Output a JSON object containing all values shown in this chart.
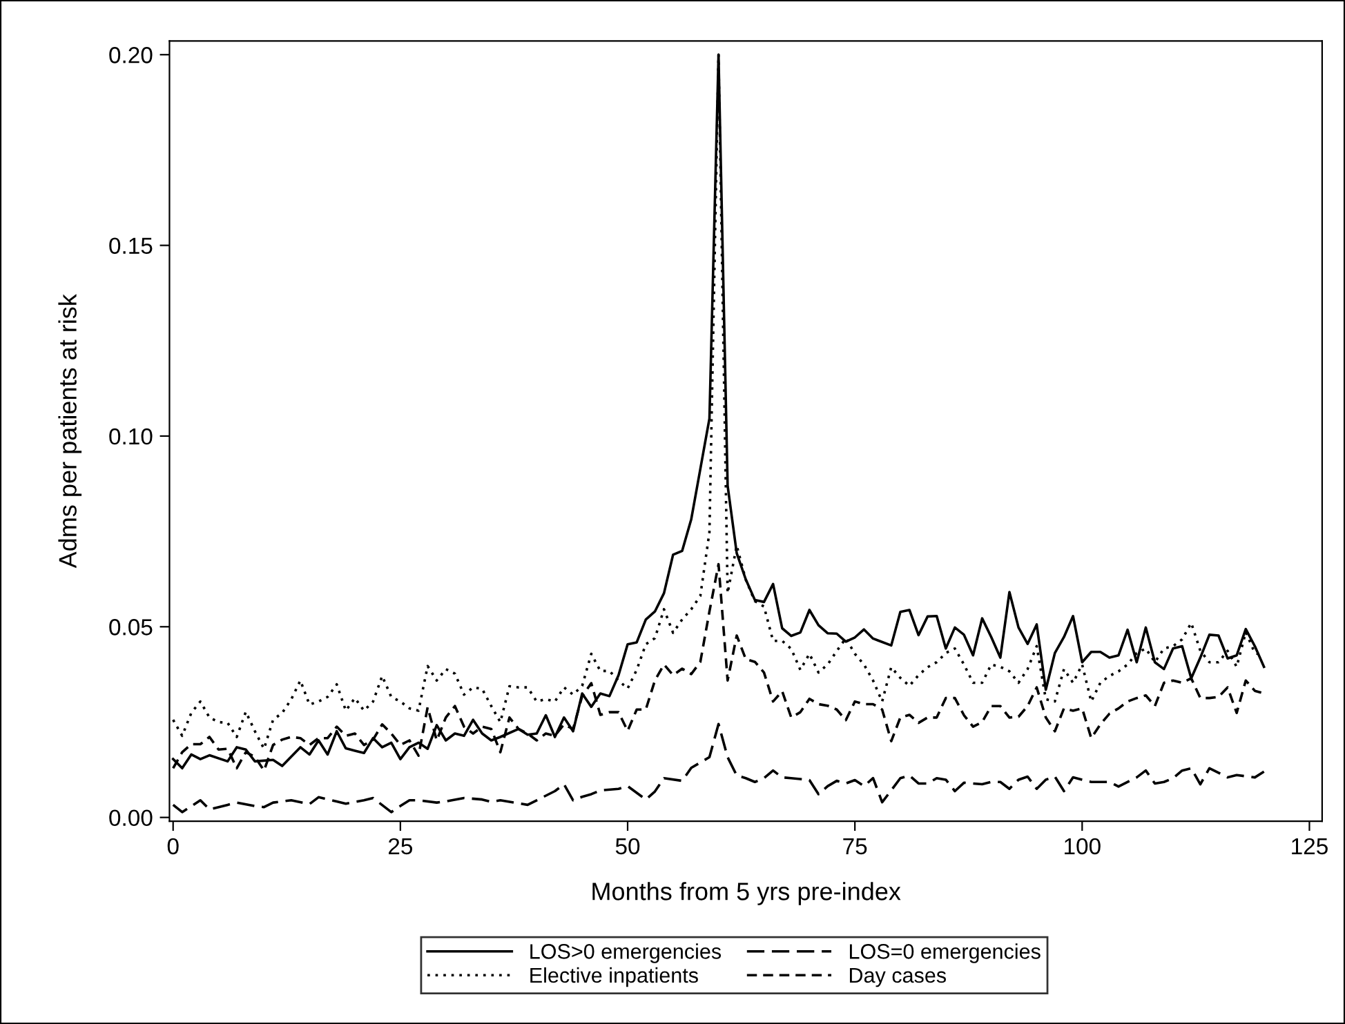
{
  "chart_data": {
    "type": "line",
    "xlabel": "Months from 5 yrs pre-index",
    "ylabel": "Adms per patients at risk",
    "xlim": [
      -0.4,
      126.4
    ],
    "ylim": [
      -0.001,
      0.2036
    ],
    "xticks": [
      0,
      25,
      50,
      75,
      100,
      125
    ],
    "yticks": [
      {
        "value": 0,
        "label": "0.00"
      },
      {
        "value": 0.05,
        "label": "0.05"
      },
      {
        "value": 0.1,
        "label": "0.10"
      },
      {
        "value": 0.15,
        "label": "0.15"
      },
      {
        "value": 0.2,
        "label": "0.20"
      }
    ],
    "grid": false,
    "legend": "bottom",
    "marker": "none",
    "series": [
      {
        "name": "LOS>0 emergencies",
        "color": "#000000",
        "line_style": "solid",
        "x": [
          0,
          1,
          2,
          3,
          4,
          6,
          7,
          8,
          9,
          11,
          12,
          14,
          15,
          16,
          17,
          18,
          19,
          20,
          21,
          22,
          23,
          24,
          25,
          26,
          27,
          28,
          29,
          30,
          31,
          32,
          33,
          34,
          35,
          36,
          38,
          39,
          40,
          41,
          42,
          43,
          44,
          45,
          46,
          47,
          48,
          49,
          50,
          51,
          52,
          53,
          54,
          55,
          56,
          57,
          58,
          59,
          60,
          61,
          62,
          63,
          64,
          65,
          66,
          67,
          68,
          69,
          70,
          71,
          72,
          73,
          74,
          75,
          76,
          77,
          79,
          80,
          81,
          82,
          83,
          84,
          85,
          86,
          87,
          88,
          89,
          90,
          91,
          92,
          93,
          94,
          95,
          96,
          97,
          98,
          99,
          100,
          101,
          102,
          103,
          104,
          105,
          106,
          107,
          108,
          109,
          110,
          111,
          112,
          113,
          114,
          115,
          116,
          117,
          118,
          119,
          120
        ],
        "values": [
          0.0153,
          0.0129,
          0.0165,
          0.0153,
          0.0163,
          0.0147,
          0.0184,
          0.0178,
          0.0147,
          0.0151,
          0.0135,
          0.0184,
          0.0165,
          0.0202,
          0.0165,
          0.0226,
          0.0181,
          0.0175,
          0.0169,
          0.0208,
          0.0184,
          0.0196,
          0.0153,
          0.0184,
          0.0196,
          0.018,
          0.0242,
          0.0202,
          0.022,
          0.0214,
          0.0256,
          0.022,
          0.0202,
          0.0211,
          0.0232,
          0.0217,
          0.022,
          0.0268,
          0.0211,
          0.0262,
          0.0226,
          0.0325,
          0.029,
          0.0325,
          0.0318,
          0.0373,
          0.0454,
          0.0459,
          0.0519,
          0.054,
          0.0588,
          0.0689,
          0.0699,
          0.0782,
          0.0914,
          0.1046,
          0.2,
          0.087,
          0.0693,
          0.0624,
          0.057,
          0.0565,
          0.0612,
          0.0496,
          0.0476,
          0.0485,
          0.0544,
          0.0504,
          0.0483,
          0.0482,
          0.0461,
          0.0472,
          0.0493,
          0.0469,
          0.0451,
          0.0539,
          0.0544,
          0.0478,
          0.0527,
          0.0528,
          0.0443,
          0.0498,
          0.0479,
          0.0425,
          0.0522,
          0.0473,
          0.0419,
          0.0591,
          0.0498,
          0.0455,
          0.0506,
          0.0335,
          0.0431,
          0.0473,
          0.0528,
          0.0407,
          0.0434,
          0.0434,
          0.0419,
          0.0425,
          0.0492,
          0.0407,
          0.0498,
          0.0407,
          0.0389,
          0.0443,
          0.0449,
          0.0365,
          0.0419,
          0.0479,
          0.0477,
          0.0417,
          0.0425,
          0.0494,
          0.0449,
          0.0395
        ]
      },
      {
        "name": "LOS=0 emergencies",
        "color": "#000000",
        "line_style": "dashed",
        "x": [
          0,
          1,
          3,
          4,
          6,
          7,
          9,
          10,
          11,
          13,
          15,
          16,
          18,
          19,
          21,
          22,
          24,
          25,
          26,
          27,
          29,
          30,
          32,
          34,
          35,
          36,
          39,
          40,
          42,
          43,
          44,
          45,
          46,
          47,
          49,
          50,
          52,
          53,
          54,
          56,
          57,
          58,
          59,
          60,
          61,
          62,
          63,
          64,
          65,
          66,
          67,
          68,
          70,
          71,
          72,
          73,
          74,
          75,
          76,
          77,
          78,
          79,
          80,
          81,
          82,
          83,
          84,
          85,
          86,
          87,
          89,
          90,
          91,
          92,
          93,
          94,
          95,
          96,
          97,
          98,
          99,
          100,
          101,
          103,
          104,
          106,
          107,
          108,
          109,
          110,
          111,
          112,
          113,
          114,
          116,
          117,
          119,
          120
        ],
        "values": [
          0.0033,
          0.0014,
          0.0045,
          0.0021,
          0.0033,
          0.0039,
          0.003,
          0.0027,
          0.0039,
          0.0045,
          0.0035,
          0.0053,
          0.0042,
          0.0036,
          0.0045,
          0.0051,
          0.0014,
          0.003,
          0.0045,
          0.0045,
          0.0039,
          0.0042,
          0.0051,
          0.0047,
          0.0041,
          0.0045,
          0.0033,
          0.0045,
          0.0069,
          0.0087,
          0.0045,
          0.0054,
          0.0061,
          0.0071,
          0.0075,
          0.0082,
          0.0047,
          0.0068,
          0.0103,
          0.0096,
          0.013,
          0.0144,
          0.0158,
          0.0245,
          0.0158,
          0.011,
          0.0103,
          0.0093,
          0.0103,
          0.0123,
          0.0105,
          0.0103,
          0.0098,
          0.0061,
          0.0082,
          0.0096,
          0.0089,
          0.0098,
          0.0082,
          0.0103,
          0.004,
          0.0071,
          0.0103,
          0.011,
          0.0089,
          0.0089,
          0.0103,
          0.0099,
          0.0069,
          0.0091,
          0.0087,
          0.0093,
          0.0093,
          0.0075,
          0.0099,
          0.0107,
          0.0075,
          0.0099,
          0.0107,
          0.0069,
          0.0105,
          0.0099,
          0.0093,
          0.0093,
          0.0081,
          0.0105,
          0.0123,
          0.0089,
          0.0093,
          0.0103,
          0.0123,
          0.0129,
          0.0087,
          0.0129,
          0.0105,
          0.0111,
          0.0105,
          0.012
        ]
      },
      {
        "name": "Elective inpatients",
        "color": "#000000",
        "line_style": "dotted",
        "x": [
          0,
          1,
          2,
          3,
          4,
          5,
          6,
          7,
          8,
          9,
          10,
          11,
          12,
          13,
          14,
          15,
          16,
          17,
          18,
          19,
          20,
          21,
          22,
          23,
          24,
          25,
          26,
          27,
          28,
          29,
          30,
          31,
          32,
          33,
          34,
          35,
          36,
          37,
          38,
          39,
          40,
          41,
          42,
          43,
          44,
          45,
          46,
          47,
          48,
          49,
          50,
          51,
          52,
          53,
          54,
          55,
          56,
          57,
          58,
          59,
          60,
          61,
          62,
          63,
          64,
          65,
          66,
          67,
          68,
          69,
          70,
          71,
          72,
          73,
          74,
          75,
          76,
          77,
          78,
          79,
          80,
          81,
          82,
          83,
          84,
          85,
          86,
          87,
          88,
          89,
          90,
          91,
          92,
          93,
          94,
          95,
          96,
          97,
          98,
          99,
          100,
          101,
          102,
          103,
          104,
          105,
          106,
          107,
          108,
          109,
          110,
          111,
          112,
          113,
          114,
          115,
          116,
          117,
          118,
          119,
          120
        ],
        "values": [
          0.0256,
          0.0214,
          0.0274,
          0.0304,
          0.0262,
          0.025,
          0.0248,
          0.0211,
          0.0277,
          0.0226,
          0.018,
          0.0256,
          0.0274,
          0.031,
          0.0359,
          0.0296,
          0.0304,
          0.0316,
          0.0349,
          0.028,
          0.0313,
          0.028,
          0.0304,
          0.0371,
          0.0316,
          0.0304,
          0.0286,
          0.028,
          0.0397,
          0.0359,
          0.0389,
          0.0377,
          0.0322,
          0.0341,
          0.0337,
          0.0292,
          0.025,
          0.0344,
          0.0341,
          0.0341,
          0.0304,
          0.031,
          0.0304,
          0.0341,
          0.0322,
          0.0345,
          0.0429,
          0.0384,
          0.0384,
          0.0359,
          0.0338,
          0.0387,
          0.0454,
          0.047,
          0.0546,
          0.0484,
          0.0519,
          0.0546,
          0.0581,
          0.0748,
          0.2,
          0.0588,
          0.0713,
          0.0623,
          0.0567,
          0.0553,
          0.0463,
          0.0463,
          0.0442,
          0.0387,
          0.0429,
          0.038,
          0.0401,
          0.0436,
          0.047,
          0.0429,
          0.0401,
          0.0359,
          0.0304,
          0.0394,
          0.0366,
          0.0345,
          0.0373,
          0.0394,
          0.0407,
          0.0431,
          0.0443,
          0.0401,
          0.0353,
          0.0353,
          0.0401,
          0.0395,
          0.0383,
          0.0353,
          0.0389,
          0.0449,
          0.031,
          0.0304,
          0.0389,
          0.0353,
          0.0401,
          0.0304,
          0.0353,
          0.0371,
          0.0383,
          0.0401,
          0.0431,
          0.0443,
          0.0407,
          0.0443,
          0.0449,
          0.0467,
          0.051,
          0.0437,
          0.0407,
          0.0407,
          0.0437,
          0.0395,
          0.0486,
          0.0431,
          0.0425
        ]
      },
      {
        "name": "Day cases",
        "color": "#000000",
        "line_style": "dashed",
        "x": [
          0,
          1,
          2,
          3,
          4,
          5,
          6,
          7,
          8,
          9,
          10,
          11,
          12,
          13,
          14,
          15,
          16,
          17,
          18,
          19,
          20,
          21,
          22,
          23,
          24,
          25,
          26,
          27,
          28,
          29,
          30,
          31,
          32,
          33,
          34,
          35,
          36,
          37,
          38,
          39,
          40,
          41,
          42,
          43,
          44,
          45,
          46,
          47,
          48,
          49,
          50,
          51,
          52,
          53,
          54,
          55,
          56,
          57,
          58,
          59,
          60,
          61,
          62,
          63,
          64,
          65,
          66,
          67,
          68,
          69,
          70,
          71,
          72,
          73,
          74,
          75,
          76,
          77,
          78,
          79,
          80,
          81,
          82,
          83,
          84,
          85,
          86,
          87,
          88,
          89,
          90,
          91,
          92,
          93,
          94,
          95,
          96,
          97,
          98,
          99,
          100,
          101,
          102,
          103,
          104,
          105,
          106,
          107,
          108,
          109,
          110,
          111,
          112,
          113,
          114,
          115,
          116,
          117,
          118,
          119,
          120
        ],
        "values": [
          0.0129,
          0.0171,
          0.0192,
          0.0192,
          0.0211,
          0.0178,
          0.018,
          0.0129,
          0.0171,
          0.0159,
          0.0123,
          0.019,
          0.0204,
          0.0211,
          0.0208,
          0.019,
          0.0208,
          0.0208,
          0.0238,
          0.0214,
          0.022,
          0.019,
          0.0204,
          0.0244,
          0.022,
          0.019,
          0.0202,
          0.0162,
          0.0289,
          0.0202,
          0.0262,
          0.0292,
          0.0238,
          0.022,
          0.0238,
          0.0232,
          0.0171,
          0.0262,
          0.0232,
          0.022,
          0.0202,
          0.022,
          0.0214,
          0.0244,
          0.0232,
          0.0318,
          0.0352,
          0.0269,
          0.0276,
          0.0276,
          0.0227,
          0.0283,
          0.0283,
          0.0359,
          0.0401,
          0.0373,
          0.039,
          0.0376,
          0.0408,
          0.054,
          0.0664,
          0.0359,
          0.0477,
          0.0415,
          0.0408,
          0.038,
          0.0304,
          0.0331,
          0.0262,
          0.0276,
          0.0311,
          0.0297,
          0.0293,
          0.0283,
          0.0255,
          0.0304,
          0.0297,
          0.0297,
          0.0283,
          0.02,
          0.0262,
          0.0269,
          0.0248,
          0.0262,
          0.0262,
          0.0313,
          0.0313,
          0.0268,
          0.0238,
          0.025,
          0.0292,
          0.0292,
          0.0262,
          0.0264,
          0.0292,
          0.0341,
          0.0262,
          0.0226,
          0.0286,
          0.028,
          0.0286,
          0.0208,
          0.0244,
          0.0272,
          0.0286,
          0.0304,
          0.0313,
          0.032,
          0.0292,
          0.0353,
          0.0359,
          0.0353,
          0.0365,
          0.0313,
          0.0313,
          0.0316,
          0.0341,
          0.0274,
          0.0359,
          0.0332,
          0.0325
        ]
      }
    ]
  }
}
